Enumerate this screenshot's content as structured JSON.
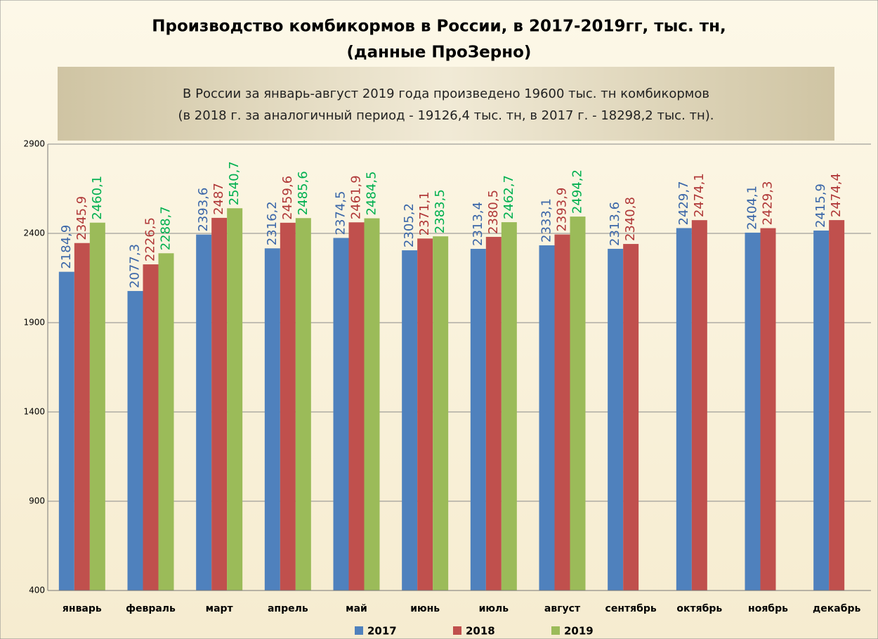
{
  "chart_data": {
    "type": "bar",
    "title": [
      "Производство комбикормов в России, в 2017-2019гг, тыс. тн,",
      "(данные ПроЗерно)"
    ],
    "subtitle": [
      "В России за январь-август 2019 года произведено 19600 тыс. тн комбикормов",
      "(в 2018 г. за аналогичный период - 19126,4 тыс. тн, в 2017 г. - 18298,2 тыс. тн)."
    ],
    "categories": [
      "январь",
      "февраль",
      "март",
      "апрель",
      "май",
      "июнь",
      "июль",
      "август",
      "сентябрь",
      "октябрь",
      "ноябрь",
      "декабрь"
    ],
    "series": [
      {
        "name": "2017",
        "color": "#4f81bd",
        "label_color": "#3a66a8",
        "values": [
          2184.9,
          2077.3,
          2393.6,
          2316.2,
          2374.5,
          2305.2,
          2313.4,
          2333.1,
          2313.6,
          2429.7,
          2404.1,
          2415.9
        ],
        "value_labels": [
          "2184,9",
          "2077,3",
          "2393,6",
          "2316,2",
          "2374,5",
          "2305,2",
          "2313,4",
          "2333,1",
          "2313,6",
          "2429,7",
          "2404,1",
          "2415,9"
        ]
      },
      {
        "name": "2018",
        "color": "#c0504d",
        "label_color": "#b03838",
        "values": [
          2345.9,
          2226.5,
          2487,
          2459.6,
          2461.9,
          2371.1,
          2380.5,
          2393.9,
          2340.8,
          2474.1,
          2429.3,
          2474.4
        ],
        "value_labels": [
          "2345,9",
          "2226,5",
          "2487",
          "2459,6",
          "2461,9",
          "2371,1",
          "2380,5",
          "2393,9",
          "2340,8",
          "2474,1",
          "2429,3",
          "2474,4"
        ]
      },
      {
        "name": "2019",
        "color": "#9bbb59",
        "label_color": "#00b050",
        "values": [
          2460.1,
          2288.7,
          2540.7,
          2485.6,
          2484.5,
          2383.5,
          2462.7,
          2494.2,
          null,
          null,
          null,
          null
        ],
        "value_labels": [
          "2460,1",
          "2288,7",
          "2540,7",
          "2485,6",
          "2484,5",
          "2383,5",
          "2462,7",
          "2494,2",
          null,
          null,
          null,
          null
        ]
      }
    ],
    "ylim": [
      400,
      2900
    ],
    "yticks": [
      400,
      900,
      1400,
      1900,
      2400,
      2900
    ],
    "grid": true,
    "legend": "bottom"
  }
}
